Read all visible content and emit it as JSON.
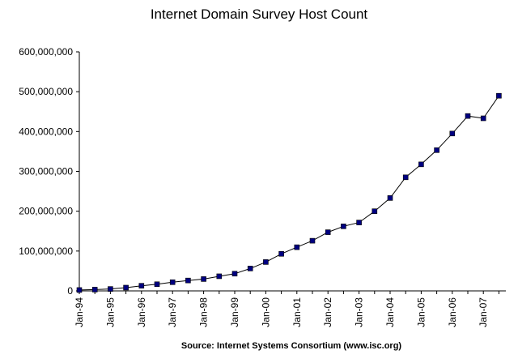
{
  "chart_data": {
    "type": "line",
    "title": "Internet Domain Survey Host Count",
    "source": "Source: Internet Systems Consortium (www.isc.org)",
    "xlabel": "",
    "ylabel": "",
    "ylim": [
      0,
      600000000
    ],
    "yticks": [
      0,
      100000000,
      200000000,
      300000000,
      400000000,
      500000000,
      600000000
    ],
    "ytick_labels": [
      "0",
      "100,000,000",
      "200,000,000",
      "300,000,000",
      "400,000,000",
      "500,000,000",
      "600,000,000"
    ],
    "xtick_labels": [
      "Jan-94",
      "Jan-95",
      "Jan-96",
      "Jan-97",
      "Jan-98",
      "Jan-99",
      "Jan-00",
      "Jan-01",
      "Jan-02",
      "Jan-03",
      "Jan-04",
      "Jan-05",
      "Jan-06",
      "Jan-07"
    ],
    "x": [
      "Jan-94",
      "Jul-94",
      "Jan-95",
      "Jul-95",
      "Jan-96",
      "Jul-96",
      "Jan-97",
      "Jul-97",
      "Jan-98",
      "Jul-98",
      "Jan-99",
      "Jul-99",
      "Jan-00",
      "Jul-00",
      "Jan-01",
      "Jul-01",
      "Jan-02",
      "Jul-02",
      "Jan-03",
      "Jul-03",
      "Jan-04",
      "Jul-04",
      "Jan-05",
      "Jul-05",
      "Jan-06",
      "Jul-06",
      "Jan-07",
      "Jul-07"
    ],
    "series": [
      {
        "values": [
          2200000,
          3200000,
          4800000,
          8200000,
          12900000,
          16700000,
          21800000,
          26100000,
          29700000,
          36700000,
          43200000,
          56200000,
          72400000,
          93000000,
          109600000,
          125900000,
          147300000,
          162100000,
          171600000,
          200000000,
          233100000,
          285100000,
          317600000,
          353300000,
          395000000,
          439000000,
          433200000,
          489800000
        ],
        "color": "#000080"
      }
    ],
    "grid": false,
    "legend": "none"
  }
}
